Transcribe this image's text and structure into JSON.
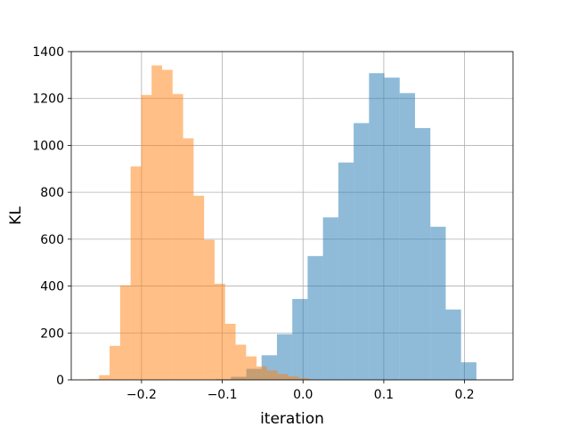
{
  "chart_data": {
    "type": "bar",
    "title": "",
    "xlabel": "iteration",
    "ylabel": "KL",
    "xlim": [
      -0.287,
      0.26
    ],
    "ylim": [
      0,
      1400
    ],
    "xticks": [
      -0.2,
      -0.1,
      0.0,
      0.1,
      0.2
    ],
    "xtick_labels": [
      "−0.2",
      "−0.1",
      "0.0",
      "0.1",
      "0.2"
    ],
    "yticks": [
      0,
      200,
      400,
      600,
      800,
      1000,
      1200,
      1400
    ],
    "ytick_labels": [
      "0",
      "200",
      "400",
      "600",
      "800",
      "1000",
      "1200",
      "1400"
    ],
    "grid": true,
    "legend": "none",
    "series": [
      {
        "color": "#1f77b4",
        "opacity": 0.5,
        "bin_edges": [
          -0.1083,
          -0.0893,
          -0.0703,
          -0.0513,
          -0.0323,
          -0.0133,
          0.0057,
          0.0247,
          0.0437,
          0.0627,
          0.0817,
          0.1007,
          0.1197,
          0.1387,
          0.1577,
          0.1767,
          0.1957,
          0.2147
        ],
        "counts": [
          3,
          13,
          47,
          105,
          195,
          345,
          528,
          693,
          927,
          1095,
          1308,
          1289,
          1223,
          1074,
          653,
          300,
          75
        ]
      },
      {
        "color": "#ff7f0e",
        "opacity": 0.5,
        "bin_edges": [
          -0.2655,
          -0.2525,
          -0.2395,
          -0.2265,
          -0.2135,
          -0.2005,
          -0.1875,
          -0.1745,
          -0.1615,
          -0.1485,
          -0.1355,
          -0.1225,
          -0.1095,
          -0.0965,
          -0.0835,
          -0.0705,
          -0.0575,
          -0.0445,
          -0.0315,
          -0.0185,
          -0.0055,
          0.0075
        ],
        "counts": [
          3,
          20,
          145,
          403,
          910,
          1215,
          1341,
          1322,
          1219,
          1030,
          785,
          597,
          410,
          239,
          150,
          100,
          57,
          40,
          25,
          15,
          8
        ]
      }
    ]
  }
}
